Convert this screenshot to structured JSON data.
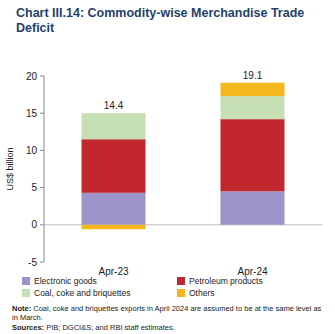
{
  "chart_data": {
    "type": "bar",
    "stacked": true,
    "title": "Chart III.14: Commodity-wise Merchandise Trade Deficit",
    "y_label": "US$ billion",
    "categories": [
      "Apr-23",
      "Apr-24"
    ],
    "series": [
      {
        "name": "Electronic goods",
        "color": "#9d93cb",
        "values": [
          4.3,
          4.5
        ]
      },
      {
        "name": "Petroleum products",
        "color": "#c1272d",
        "values": [
          7.2,
          9.7
        ]
      },
      {
        "name": "Coal, coke and briquettes",
        "color": "#c6dfb5",
        "values": [
          3.5,
          3.1
        ]
      },
      {
        "name": "Others",
        "color": "#f5b81c",
        "values": [
          -0.6,
          1.8
        ]
      }
    ],
    "totals": [
      14.4,
      19.1
    ],
    "ylim": [
      -5,
      20
    ],
    "yticks": [
      -5,
      0,
      5,
      10,
      15,
      20
    ],
    "grid": false,
    "legend": "bottom",
    "notes": [
      "Note: Coal, coke and briquettes exports in April 2024 are assumed to be at the same level as in March.",
      "Sources: PIB; DGCI&S; and RBI staff estimates."
    ]
  }
}
